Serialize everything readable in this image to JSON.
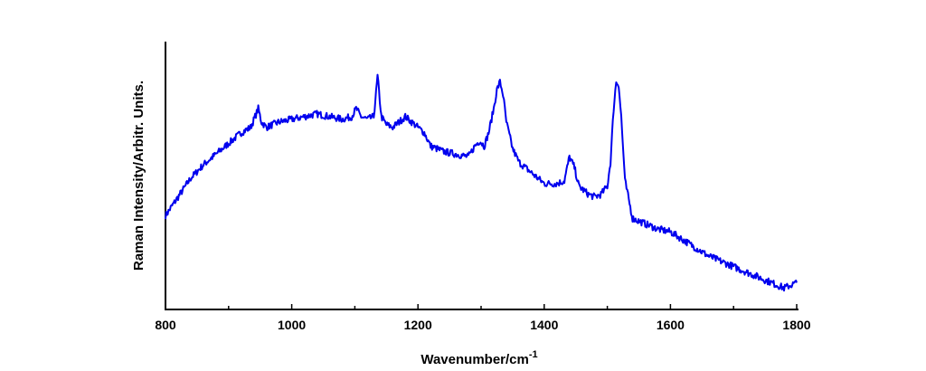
{
  "chart_data": {
    "type": "line",
    "title": "",
    "xlabel": "Wavenumber/cm",
    "xlabel_superscript": "-1",
    "ylabel": "Raman Intensity/Arbitr. Units.",
    "xlim": [
      800,
      1800
    ],
    "ylim": [
      0,
      100
    ],
    "x_major_ticks": [
      800,
      1000,
      1200,
      1400,
      1600,
      1800
    ],
    "x_tick_labels": [
      "800",
      "1000",
      "1200",
      "1400",
      "1600",
      "1800"
    ],
    "y_tick_labels": [],
    "grid": false,
    "legend": "none",
    "series": [
      {
        "color": "#0000ee",
        "x": [
          800,
          820,
          840,
          860,
          880,
          900,
          920,
          935,
          942,
          947,
          952,
          960,
          980,
          1000,
          1020,
          1040,
          1060,
          1080,
          1095,
          1102,
          1110,
          1120,
          1130,
          1136,
          1142,
          1150,
          1160,
          1170,
          1180,
          1190,
          1200,
          1210,
          1220,
          1240,
          1260,
          1280,
          1290,
          1298,
          1305,
          1312,
          1320,
          1325,
          1330,
          1335,
          1340,
          1350,
          1360,
          1380,
          1400,
          1420,
          1432,
          1440,
          1448,
          1455,
          1470,
          1480,
          1490,
          1500,
          1505,
          1510,
          1514,
          1518,
          1522,
          1528,
          1540,
          1560,
          1580,
          1600,
          1620,
          1640,
          1660,
          1680,
          1700,
          1720,
          1740,
          1760,
          1780,
          1800
        ],
        "y": [
          35,
          42,
          49,
          54,
          58,
          62,
          66,
          68,
          72,
          75,
          70,
          68,
          70,
          71,
          72,
          73,
          72,
          71,
          72,
          75,
          72,
          71,
          72,
          87,
          72,
          69,
          68,
          70,
          72,
          70,
          68,
          66,
          61,
          59,
          58,
          57,
          61,
          63,
          61,
          66,
          75,
          82,
          85,
          80,
          70,
          60,
          55,
          51,
          47,
          47,
          48,
          57,
          53,
          46,
          43,
          42,
          43,
          46,
          55,
          75,
          85,
          84,
          72,
          48,
          34,
          32,
          30,
          29,
          26,
          23,
          20,
          18,
          16,
          14,
          12,
          10,
          8,
          10
        ]
      }
    ]
  }
}
